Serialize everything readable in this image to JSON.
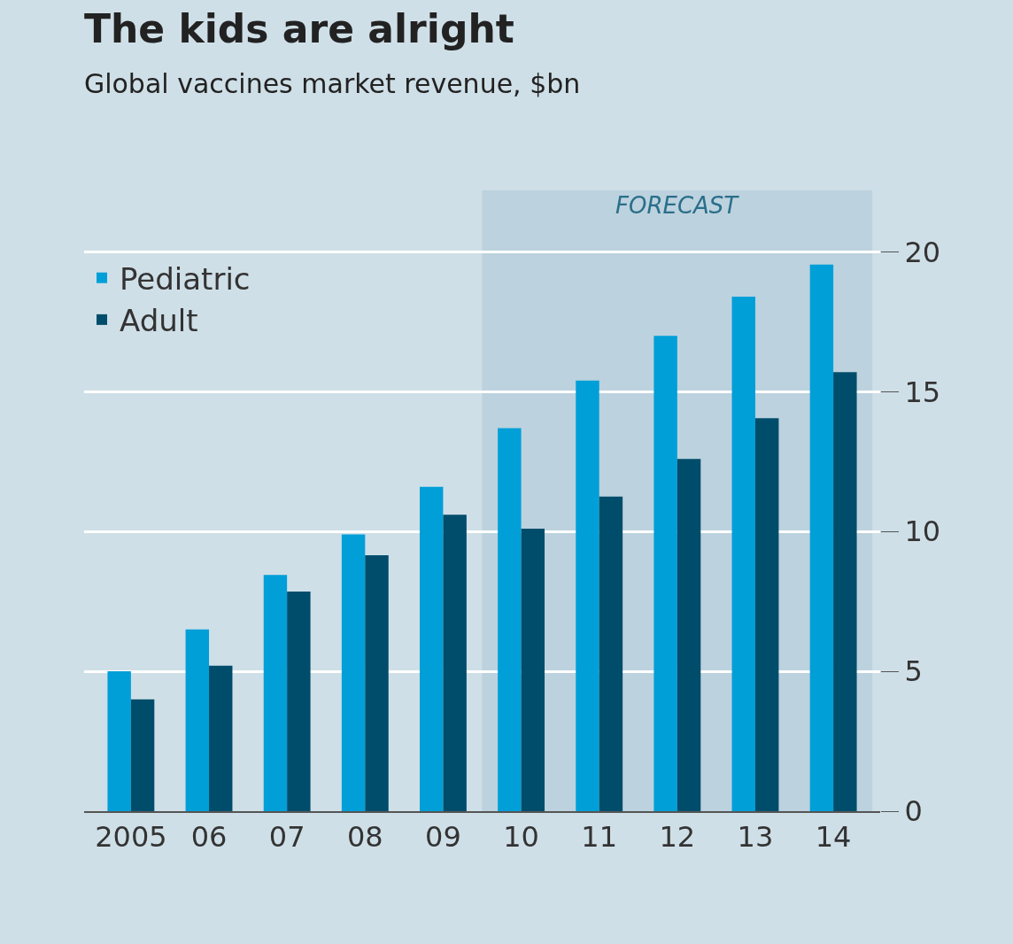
{
  "chart_data": {
    "type": "bar",
    "title": "The kids are alright",
    "subtitle": "Global vaccines market revenue, $bn",
    "categories": [
      "2005",
      "06",
      "07",
      "08",
      "09",
      "10",
      "11",
      "12",
      "13",
      "14"
    ],
    "series": [
      {
        "name": "Pediatric",
        "color": "#009fd8",
        "values": [
          5.0,
          6.5,
          8.45,
          9.9,
          11.6,
          13.7,
          15.4,
          17.0,
          18.4,
          19.55
        ]
      },
      {
        "name": "Adult",
        "color": "#004d6b",
        "values": [
          4.0,
          5.2,
          7.85,
          9.15,
          10.6,
          10.1,
          11.25,
          12.6,
          14.05,
          15.7
        ]
      }
    ],
    "ylim": [
      0,
      22.2
    ],
    "yticks": [
      0,
      5,
      10,
      15,
      20
    ],
    "grid": "y",
    "legend": "top left",
    "bands": [
      {
        "axis": "x",
        "from": "10",
        "to": "14",
        "label": "FORECAST",
        "color": "#bcd2de"
      }
    ]
  }
}
